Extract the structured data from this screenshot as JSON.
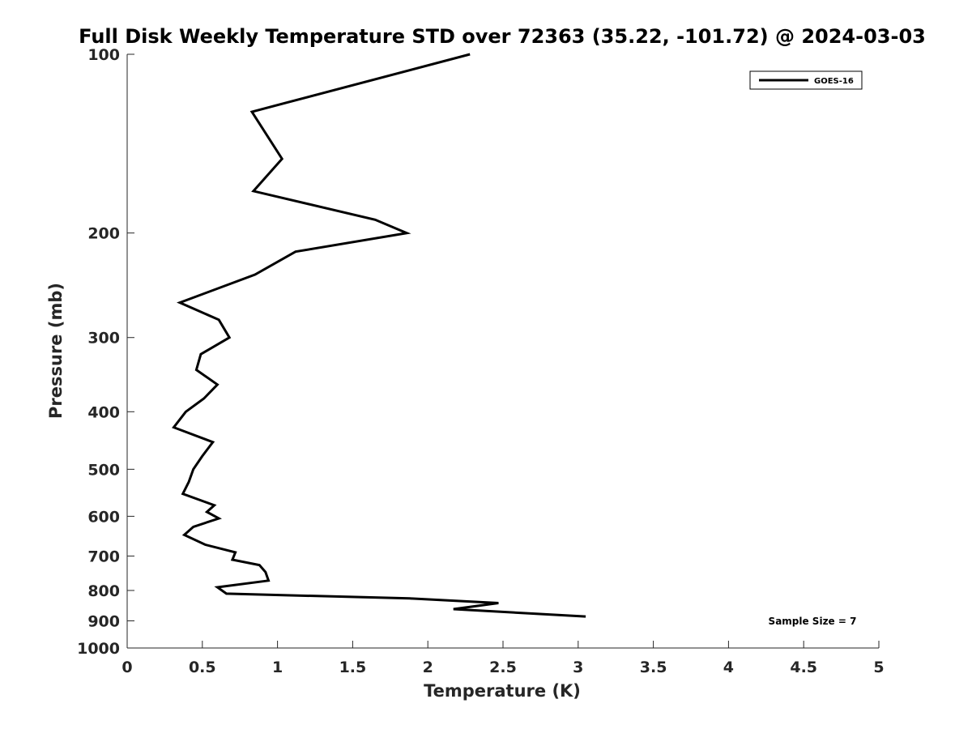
{
  "chart_data": {
    "type": "line",
    "title": "Full Disk Weekly Temperature STD over 72363 (35.22, -101.72) @ 2024-03-03",
    "xlabel": "Temperature (K)",
    "ylabel": "Pressure (mb)",
    "xlim": [
      0,
      5
    ],
    "ylim": [
      100,
      1000
    ],
    "y_scale": "log",
    "y_reversed": true,
    "x_ticks": [
      0,
      0.5,
      1,
      1.5,
      2,
      2.5,
      3,
      3.5,
      4,
      4.5,
      5
    ],
    "x_tick_labels": [
      "0",
      "0.5",
      "1",
      "1.5",
      "2",
      "2.5",
      "3",
      "3.5",
      "4",
      "4.5",
      "5"
    ],
    "y_ticks": [
      100,
      200,
      300,
      400,
      500,
      600,
      700,
      800,
      900,
      1000
    ],
    "y_tick_labels": [
      "100",
      "200",
      "300",
      "400",
      "500",
      "600",
      "700",
      "800",
      "900",
      "1000"
    ],
    "grid": false,
    "legend_position": "top-right",
    "annotation": "Sample Size = 7",
    "series": [
      {
        "name": "GOES-16",
        "color": "#000000",
        "points": [
          [
            2.28,
            100
          ],
          [
            0.83,
            125
          ],
          [
            1.03,
            150
          ],
          [
            0.84,
            170
          ],
          [
            1.65,
            190
          ],
          [
            1.86,
            200
          ],
          [
            1.12,
            215
          ],
          [
            0.85,
            235
          ],
          [
            0.35,
            262
          ],
          [
            0.61,
            280
          ],
          [
            0.68,
            300
          ],
          [
            0.49,
            320
          ],
          [
            0.46,
            340
          ],
          [
            0.6,
            360
          ],
          [
            0.51,
            380
          ],
          [
            0.39,
            400
          ],
          [
            0.31,
            425
          ],
          [
            0.57,
            450
          ],
          [
            0.5,
            475
          ],
          [
            0.44,
            500
          ],
          [
            0.41,
            525
          ],
          [
            0.37,
            550
          ],
          [
            0.58,
            575
          ],
          [
            0.53,
            590
          ],
          [
            0.61,
            605
          ],
          [
            0.44,
            625
          ],
          [
            0.38,
            645
          ],
          [
            0.52,
            670
          ],
          [
            0.72,
            690
          ],
          [
            0.7,
            710
          ],
          [
            0.88,
            725
          ],
          [
            0.92,
            745
          ],
          [
            0.94,
            770
          ],
          [
            0.6,
            790
          ],
          [
            0.66,
            810
          ],
          [
            1.88,
            825
          ],
          [
            2.47,
            840
          ],
          [
            2.17,
            860
          ],
          [
            3.05,
            885
          ]
        ]
      }
    ]
  }
}
